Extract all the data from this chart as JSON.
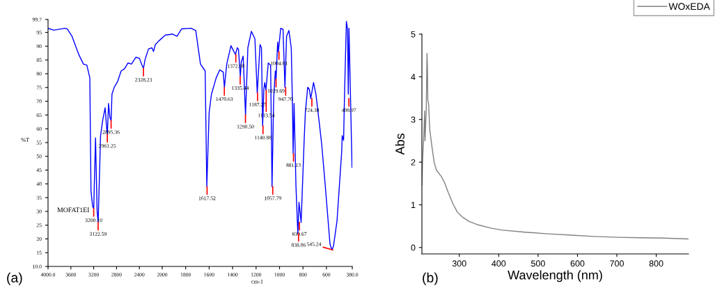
{
  "chart_data": [
    {
      "type": "line",
      "ylabel": "%T",
      "xlim": [
        4000,
        2000
      ],
      "ylim": [
        10,
        99.7
      ],
      "xticks": [
        {
          "value": 4000,
          "label": "4000.0"
        },
        3600,
        3200,
        2800,
        2400,
        2000
      ],
      "yticks": [
        {
          "value": 10,
          "label": "10.0"
        },
        15,
        20,
        25,
        30,
        35,
        40,
        45,
        50,
        55,
        60,
        65,
        70,
        75,
        80,
        85,
        90,
        95,
        {
          "value": 99.7,
          "label": "99.7"
        }
      ],
      "grid": false,
      "legend": false,
      "series": [
        {
          "color": "#0000ff",
          "x": [
            4000,
            3900,
            3700,
            3660,
            3580,
            3460,
            3380,
            3320,
            3268,
            3248,
            3220,
            3200,
            3168,
            3140,
            3122,
            3080,
            3040,
            3000,
            2972,
            2961,
            2940,
            2916,
            2895,
            2880,
            2840,
            2780,
            2720,
            2660,
            2600,
            2540,
            2460,
            2400,
            2352,
            2328,
            2300,
            2240,
            2180,
            2152,
            2120,
            2060,
            2000
          ],
          "values": [
            96.5,
            95.8,
            96.5,
            96.2,
            93.6,
            86.9,
            83.5,
            83.1,
            78.5,
            37.5,
            32,
            31,
            56.7,
            30,
            26,
            57.5,
            63.4,
            67.6,
            60,
            58,
            69.2,
            64,
            63,
            72.6,
            75.1,
            77.2,
            81,
            81.8,
            83.9,
            83.5,
            86,
            85.6,
            83,
            82,
            85.2,
            89,
            89.4,
            88.1,
            90.6,
            91.9,
            93
          ]
        }
      ],
      "annotations": [
        {
          "text": "3200.10",
          "x": 3200.1,
          "y": 31
        },
        {
          "text": "3122.59",
          "x": 3122.59,
          "y": 26
        },
        {
          "text": "2961.25",
          "x": 2961.25,
          "y": 58
        },
        {
          "text": "2895.36",
          "x": 2895.36,
          "y": 63
        },
        {
          "text": "2328.23",
          "x": 2328.23,
          "y": 82
        },
        "MOFAT1EI",
        "(a)"
      ]
    },
    {
      "type": "line",
      "xlabel": "cm-1",
      "xlim": [
        2000,
        380
      ],
      "ylim": [
        10,
        99.7
      ],
      "xticks": [
        1800,
        1600,
        1400,
        1200,
        1000,
        800,
        600,
        {
          "value": 380,
          "label": "380.0"
        }
      ],
      "tick_labels": "x",
      "grid": false,
      "legend": false,
      "series": [
        {
          "color": "#0000ff",
          "x": [
            2000,
            1974,
            1914,
            1874,
            1834,
            1754,
            1714,
            1674,
            1634,
            1620,
            1600,
            1580,
            1540,
            1510,
            1480,
            1470,
            1450,
            1414,
            1390,
            1376,
            1360,
            1350,
            1334,
            1326,
            1310,
            1290,
            1270,
            1240,
            1210,
            1190,
            1166,
            1154,
            1144,
            1134,
            1126,
            1116,
            1096,
            1076,
            1064,
            1050,
            1036,
            1030,
            1016,
            1010,
            990,
            970,
            954,
            940,
            920,
            900,
            890,
            884,
            876,
            860,
            844,
            834,
            816,
            790,
            780,
            760,
            746,
            734,
            710,
            690,
            660,
            640,
            610,
            570,
            554,
            540,
            510,
            470,
            466,
            454,
            446,
            430,
            420,
            414,
            408,
            400,
            382
          ],
          "values": [
            93,
            94,
            94.4,
            93.6,
            96.3,
            96.5,
            95.7,
            83.5,
            81,
            39,
            65.9,
            72.6,
            78.5,
            81.4,
            80.6,
            75,
            83.5,
            90.2,
            88.1,
            87,
            89.4,
            88.9,
            79,
            84.3,
            86.4,
            65,
            89.4,
            95.4,
            92.7,
            73,
            90.6,
            89.4,
            61,
            74.3,
            76.8,
            74,
            83.9,
            83.1,
            39,
            71,
            81,
            78,
            91.5,
            88,
            96.5,
            96.1,
            75,
            93.6,
            95.7,
            89.4,
            69.2,
            51,
            69.2,
            39.2,
            22,
            33.3,
            26,
            56,
            65.9,
            75.1,
            74.3,
            71,
            76.8,
            72.6,
            61.7,
            54.1,
            39.2,
            18.2,
            16,
            17.4,
            26.6,
            51.8,
            57.5,
            55.8,
            72.6,
            99,
            96.1,
            72.6,
            96.5,
            81,
            46
          ]
        }
      ],
      "annotations": [
        {
          "text": "1617.52",
          "x": 1617.52,
          "y": 39
        },
        {
          "text": "1470.63",
          "x": 1470.63,
          "y": 75
        },
        {
          "text": "1372.60",
          "x": 1372.6,
          "y": 87
        },
        {
          "text": "1335.44",
          "x": 1335.44,
          "y": 79
        },
        {
          "text": "1290.50",
          "x": 1290.5,
          "y": 65
        },
        {
          "text": "1187.27",
          "x": 1187.27,
          "y": 73
        },
        {
          "text": "1140.88",
          "x": 1140.88,
          "y": 61
        },
        {
          "text": "1113.54",
          "x": 1113.54,
          "y": 74
        },
        {
          "text": "1057.79",
          "x": 1057.79,
          "y": 39
        },
        {
          "text": "1029.69",
          "x": 1029.69,
          "y": 78
        },
        {
          "text": "1004.81",
          "x": 1004.81,
          "y": 88
        },
        {
          "text": "947.70",
          "x": 947.7,
          "y": 75
        },
        {
          "text": "881.13",
          "x": 881.13,
          "y": 51
        },
        {
          "text": "830.67",
          "x": 830.67,
          "y": 26
        },
        {
          "text": "838.06",
          "x": 838.06,
          "y": 22
        },
        {
          "text": "724.38",
          "x": 724.38,
          "y": 71
        },
        {
          "text": "545.24",
          "x": 545.24,
          "y": 16
        },
        {
          "text": "408.97",
          "x": 408.97,
          "y": 71
        }
      ]
    },
    {
      "type": "line",
      "xlabel": "Wavelength (nm)",
      "ylabel": "Abs",
      "xlim": [
        205,
        882
      ],
      "ylim": [
        -0.15,
        5
      ],
      "xticks": [
        300,
        400,
        500,
        600,
        700,
        800
      ],
      "yticks": [
        0,
        1,
        2,
        3,
        4,
        5
      ],
      "grid": false,
      "legend": "top right",
      "series": [
        {
          "name": "WOxEDA",
          "color": "#808080",
          "x": [
            205,
            207,
            210,
            212,
            213,
            215,
            216,
            218,
            219,
            220,
            222,
            225,
            231,
            236,
            242,
            254,
            263,
            272,
            284,
            295,
            307,
            325,
            348,
            378,
            407,
            466,
            525,
            584,
            642,
            701,
            760,
            819,
            882
          ],
          "values": [
            1.46,
            2.1,
            2.65,
            3.2,
            2.5,
            3.0,
            3.2,
            4.55,
            4.23,
            3.47,
            3.36,
            2.76,
            2.33,
            2.0,
            1.81,
            1.67,
            1.51,
            1.29,
            1.02,
            0.83,
            0.72,
            0.61,
            0.53,
            0.46,
            0.41,
            0.36,
            0.32,
            0.29,
            0.26,
            0.24,
            0.23,
            0.22,
            0.2
          ]
        }
      ],
      "annotations": [
        "(b)"
      ]
    }
  ]
}
